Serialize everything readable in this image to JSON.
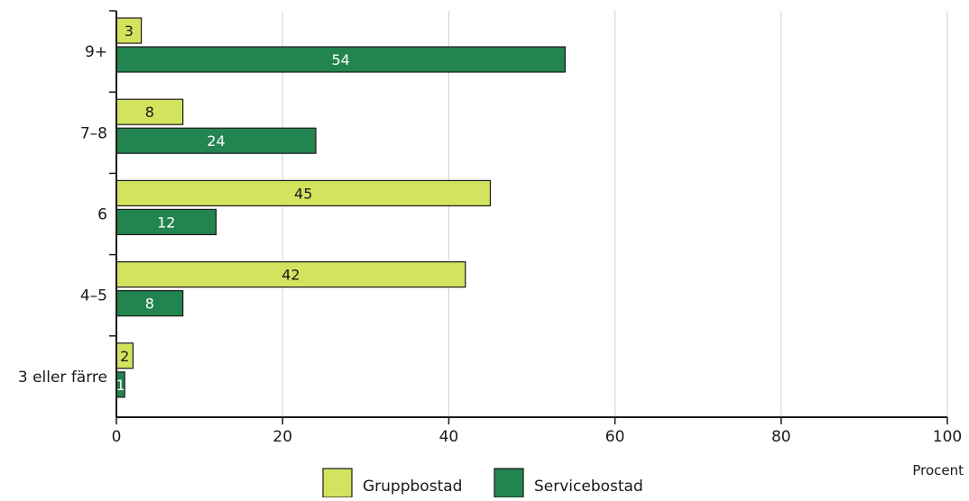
{
  "chart_data": {
    "type": "bar",
    "orientation": "horizontal",
    "categories": [
      "9+",
      "7–8",
      "6",
      "4–5",
      "3 eller färre"
    ],
    "series": [
      {
        "name": "Gruppbostad",
        "values": [
          3,
          8,
          45,
          42,
          2
        ],
        "color": "#d4e35e",
        "label_color": "#1a1a1a"
      },
      {
        "name": "Servicebostad",
        "values": [
          54,
          24,
          12,
          8,
          1
        ],
        "color": "#22844f",
        "label_color": "#ffffff"
      }
    ],
    "xlabel": "Procent",
    "xlim": [
      0,
      100
    ],
    "xticks": [
      0,
      20,
      40,
      60,
      80,
      100
    ],
    "grid": "vertical",
    "legend_position": "bottom-center",
    "bar_labels": true
  }
}
